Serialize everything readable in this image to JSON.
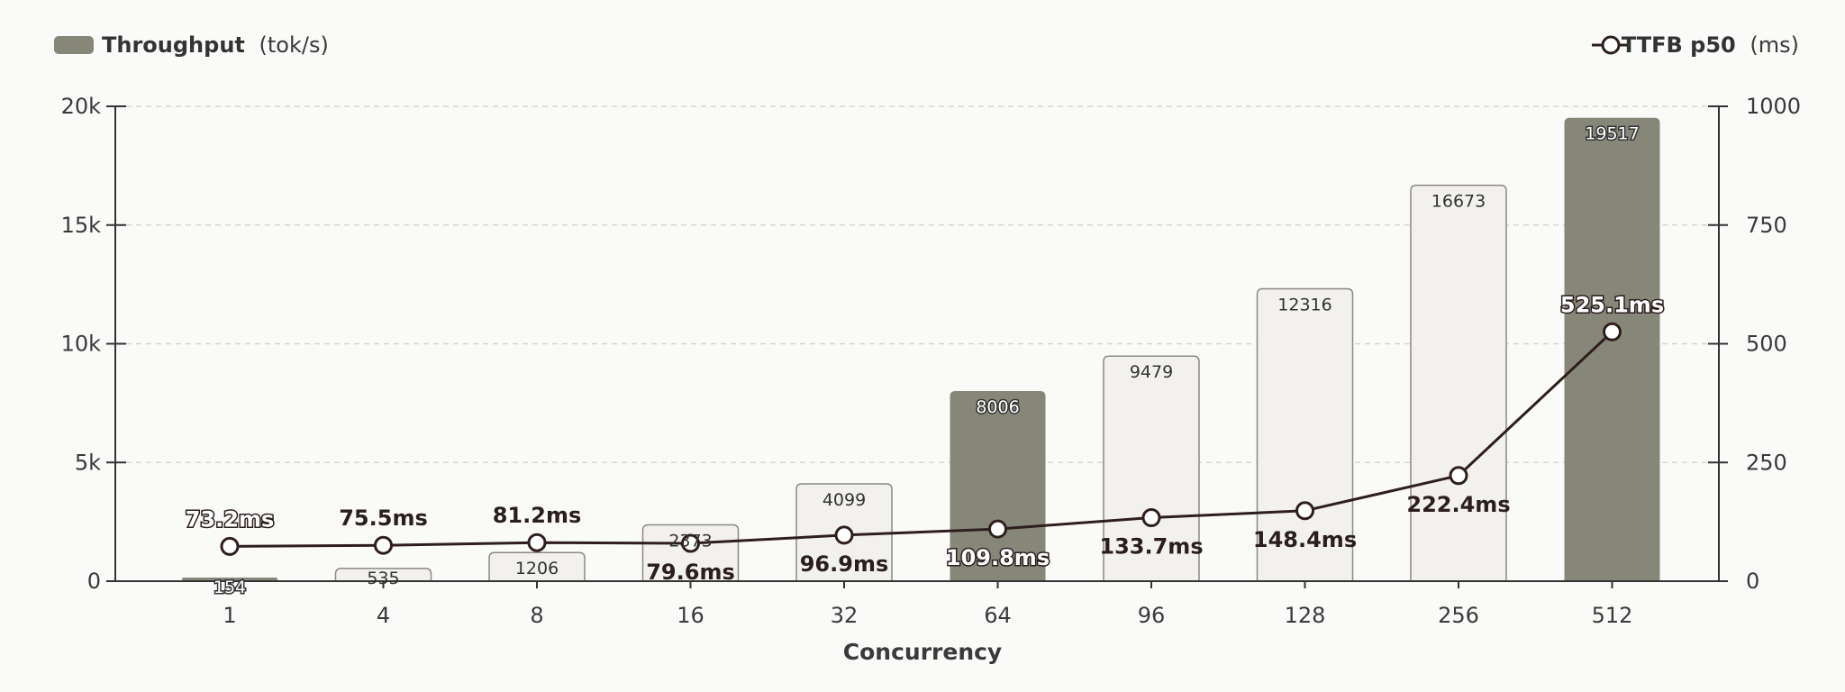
{
  "legend": {
    "left": {
      "name": "Throughput",
      "unit": "(tok/s)"
    },
    "right": {
      "name": "TTFB p50",
      "unit": "(ms)"
    }
  },
  "colors": {
    "bar_light": "#f2f1ed",
    "bar_light_stroke": "#8a8a80",
    "bar_dark": "#878779",
    "line": "#2e1e1e",
    "grid": "#d6d6d0",
    "axis": "#333333"
  },
  "chart_data": {
    "type": "bar",
    "xlabel": "Concurrency",
    "categories": [
      "1",
      "4",
      "8",
      "16",
      "32",
      "64",
      "96",
      "128",
      "256",
      "512"
    ],
    "series": [
      {
        "name": "Throughput (tok/s)",
        "type": "bar",
        "axis": "left",
        "values": [
          154,
          535,
          1206,
          2373,
          4099,
          8006,
          9479,
          12316,
          16673,
          19517
        ],
        "labels": [
          "154",
          "535",
          "1206",
          "2373",
          "4099",
          "8006",
          "9479",
          "12316",
          "16673",
          "19517"
        ],
        "highlighted": [
          true,
          false,
          false,
          false,
          false,
          true,
          false,
          false,
          false,
          true
        ]
      },
      {
        "name": "TTFB p50 (ms)",
        "type": "line",
        "axis": "right",
        "values": [
          73.2,
          75.5,
          81.2,
          79.6,
          96.9,
          109.8,
          133.7,
          148.4,
          222.4,
          525.1
        ],
        "labels": [
          "73.2ms",
          "75.5ms",
          "81.2ms",
          "79.6ms",
          "96.9ms",
          "109.8ms",
          "133.7ms",
          "148.4ms",
          "222.4ms",
          "525.1ms"
        ],
        "label_position": [
          "above",
          "above",
          "above",
          "below",
          "below",
          "below",
          "below",
          "below",
          "below",
          "above"
        ]
      }
    ],
    "y_left": {
      "ylim": [
        0,
        20000
      ],
      "ticks": [
        0,
        5000,
        10000,
        15000,
        20000
      ],
      "tick_labels": [
        "0",
        "5k",
        "10k",
        "15k",
        "20k"
      ]
    },
    "y_right": {
      "ylim": [
        0,
        1000
      ],
      "ticks": [
        0,
        250,
        500,
        750,
        1000
      ],
      "tick_labels": [
        "0",
        "250",
        "500",
        "750",
        "1000"
      ]
    },
    "grid": true,
    "legend_placement": "top"
  }
}
